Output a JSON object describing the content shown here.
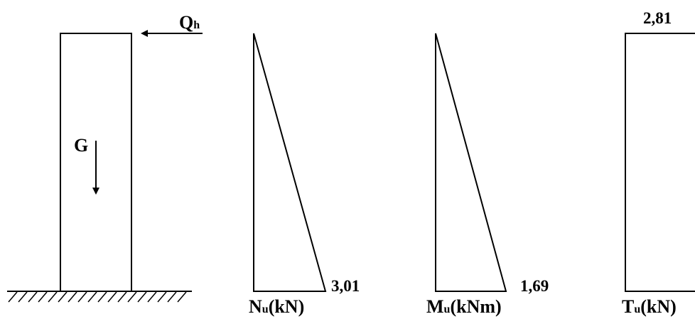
{
  "column": {
    "load_horizontal": {
      "symbol": "Q",
      "subscript": "h"
    },
    "load_weight": {
      "symbol": "G"
    }
  },
  "diagrams": {
    "normal": {
      "symbol": "N",
      "subscript": "u",
      "unit": "(kN)",
      "value": "3,01"
    },
    "moment": {
      "symbol": "M",
      "subscript": "u",
      "unit": "(kNm)",
      "value": "1,69"
    },
    "shear": {
      "symbol": "T",
      "subscript": "u",
      "unit": "(kN)",
      "value": "2,81"
    }
  },
  "colors": {
    "ink": "#000000",
    "background": "#ffffff"
  }
}
